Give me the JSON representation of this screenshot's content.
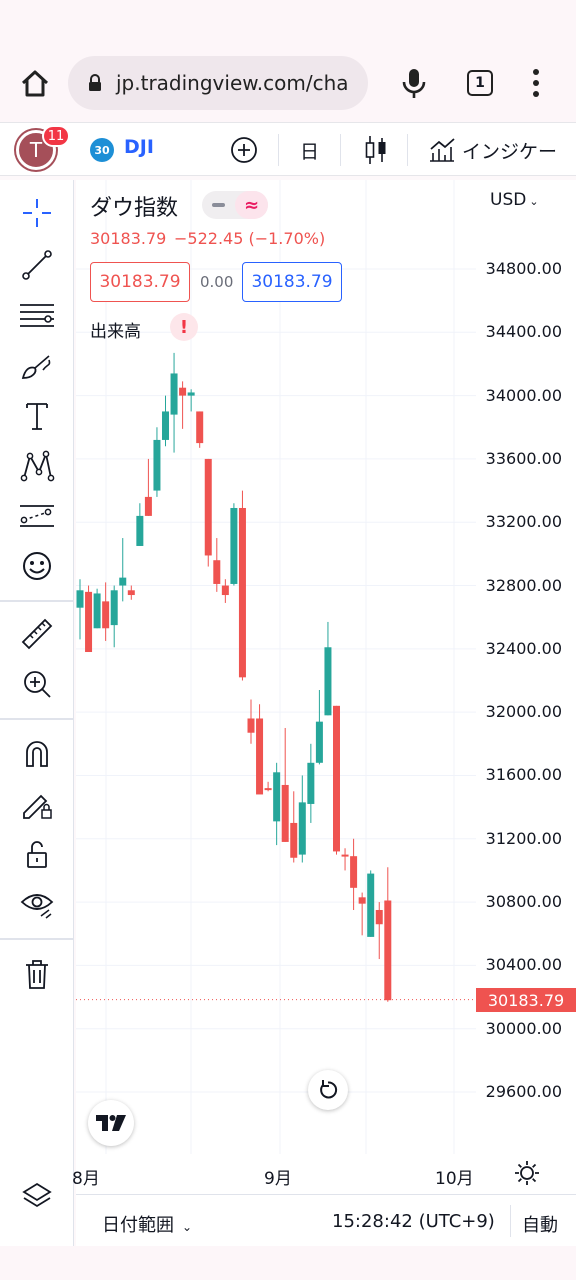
{
  "browser": {
    "url": "jp.tradingview.com/cha",
    "tab_count": "1"
  },
  "toolbar": {
    "avatar_letter": "T",
    "notifications": "11",
    "symbol_badge": "30",
    "symbol": "DJI",
    "interval": "日",
    "indicators_label": "インジケー"
  },
  "legend": {
    "title": "ダウ指数",
    "last": "30183.79",
    "change": "−522.45 (−1.70%)",
    "sell_price": "30183.79",
    "spread": "0.00",
    "buy_price": "30183.79",
    "volume_label": "出来高",
    "warning": "!"
  },
  "price_axis": {
    "currency": "USD",
    "ticks": [
      "34800.00",
      "34400.00",
      "34000.00",
      "33600.00",
      "33200.00",
      "32800.00",
      "32400.00",
      "32000.00",
      "31600.00",
      "31200.00",
      "30800.00",
      "30400.00",
      "30000.00",
      "29600.00"
    ],
    "last_price_label": "30183.79"
  },
  "time_axis": {
    "labels": [
      "8月",
      "9月",
      "10月"
    ]
  },
  "bottom": {
    "date_range": "日付範囲",
    "time": "15:28:42 (UTC+9)",
    "auto": "自動"
  },
  "colors": {
    "up": "#26a69a",
    "down": "#ef5350",
    "accent": "#2962ff"
  },
  "chart_data": {
    "type": "candlestick",
    "y_range": [
      29400,
      35100
    ],
    "candles": [
      {
        "o": 32660,
        "h": 32840,
        "l": 32460,
        "c": 32770
      },
      {
        "o": 32760,
        "h": 32800,
        "l": 32380,
        "c": 32380
      },
      {
        "o": 32530,
        "h": 32780,
        "l": 32530,
        "c": 32750
      },
      {
        "o": 32700,
        "h": 32820,
        "l": 32450,
        "c": 32530
      },
      {
        "o": 32550,
        "h": 32800,
        "l": 32410,
        "c": 32770
      },
      {
        "o": 32800,
        "h": 33100,
        "l": 32700,
        "c": 32850
      },
      {
        "o": 32770,
        "h": 32800,
        "l": 32710,
        "c": 32740
      },
      {
        "o": 33050,
        "h": 33320,
        "l": 33050,
        "c": 33240
      },
      {
        "o": 33360,
        "h": 33600,
        "l": 33240,
        "c": 33240
      },
      {
        "o": 33400,
        "h": 33800,
        "l": 33360,
        "c": 33720
      },
      {
        "o": 33720,
        "h": 34000,
        "l": 33680,
        "c": 33900
      },
      {
        "o": 33880,
        "h": 34270,
        "l": 33640,
        "c": 34140
      },
      {
        "o": 34050,
        "h": 34090,
        "l": 33790,
        "c": 34000
      },
      {
        "o": 34000,
        "h": 34040,
        "l": 33900,
        "c": 34020
      },
      {
        "o": 33900,
        "h": 33900,
        "l": 33670,
        "c": 33700
      },
      {
        "o": 33600,
        "h": 33600,
        "l": 32920,
        "c": 32990
      },
      {
        "o": 32960,
        "h": 33100,
        "l": 32760,
        "c": 32810
      },
      {
        "o": 32800,
        "h": 32840,
        "l": 32690,
        "c": 32740
      },
      {
        "o": 32810,
        "h": 33320,
        "l": 32800,
        "c": 33290
      },
      {
        "o": 33290,
        "h": 33400,
        "l": 32200,
        "c": 32220
      },
      {
        "o": 31960,
        "h": 32080,
        "l": 31800,
        "c": 31870
      },
      {
        "o": 31960,
        "h": 32050,
        "l": 31500,
        "c": 31480
      },
      {
        "o": 31520,
        "h": 31560,
        "l": 31500,
        "c": 31510
      },
      {
        "o": 31310,
        "h": 31680,
        "l": 31160,
        "c": 31620
      },
      {
        "o": 31540,
        "h": 31900,
        "l": 31180,
        "c": 31180
      },
      {
        "o": 31300,
        "h": 31500,
        "l": 31050,
        "c": 31080
      },
      {
        "o": 31100,
        "h": 31600,
        "l": 31050,
        "c": 31430
      },
      {
        "o": 31420,
        "h": 31800,
        "l": 31300,
        "c": 31680
      },
      {
        "o": 31680,
        "h": 32140,
        "l": 31670,
        "c": 31940
      },
      {
        "o": 31980,
        "h": 32570,
        "l": 31980,
        "c": 32410
      },
      {
        "o": 32040,
        "h": 32040,
        "l": 31100,
        "c": 31120
      },
      {
        "o": 31100,
        "h": 31140,
        "l": 31000,
        "c": 31090
      },
      {
        "o": 31090,
        "h": 31200,
        "l": 30750,
        "c": 30890
      },
      {
        "o": 30830,
        "h": 30860,
        "l": 30590,
        "c": 30790
      },
      {
        "o": 30580,
        "h": 31000,
        "l": 30580,
        "c": 30980
      },
      {
        "o": 30750,
        "h": 30800,
        "l": 30440,
        "c": 30660
      },
      {
        "o": 30810,
        "h": 31020,
        "l": 30170,
        "c": 30180
      }
    ]
  }
}
